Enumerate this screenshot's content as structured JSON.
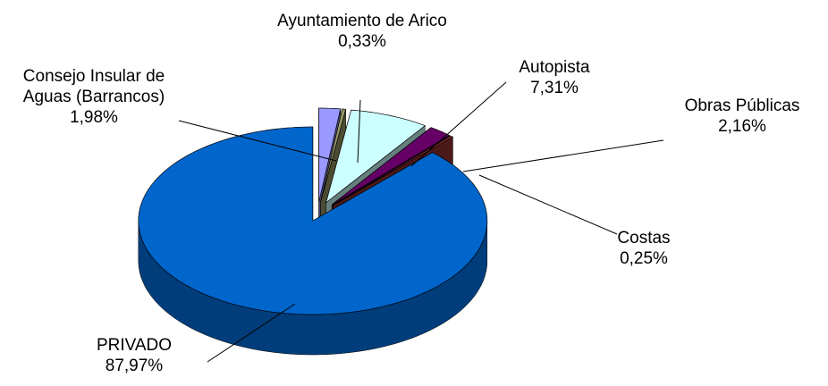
{
  "chart_data": {
    "type": "pie",
    "categories": [
      "Consejo Insular de Aguas (Barrancos)",
      "Ayuntamiento de Arico",
      "Autopista",
      "Obras Públicas",
      "Costas",
      "PRIVADO"
    ],
    "values": [
      1.98,
      0.33,
      7.31,
      2.16,
      0.25,
      87.97
    ],
    "value_labels": [
      "1,98%",
      "0,33%",
      "7,31%",
      "2,16%",
      "0,25%",
      "87,97%"
    ],
    "colors": [
      "#9999ff",
      "#999966",
      "#ccffff",
      "#660066",
      "#993333",
      "#0066cc"
    ],
    "exploded": true
  }
}
